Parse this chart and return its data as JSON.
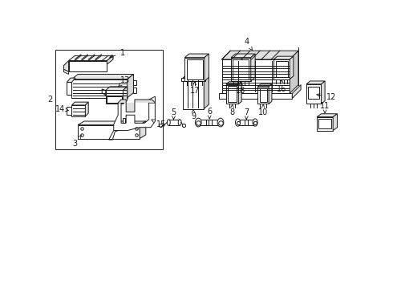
{
  "bg_color": "#ffffff",
  "line_color": "#1a1a1a",
  "fig_width": 4.9,
  "fig_height": 3.6,
  "dpi": 100,
  "lw": 0.7
}
